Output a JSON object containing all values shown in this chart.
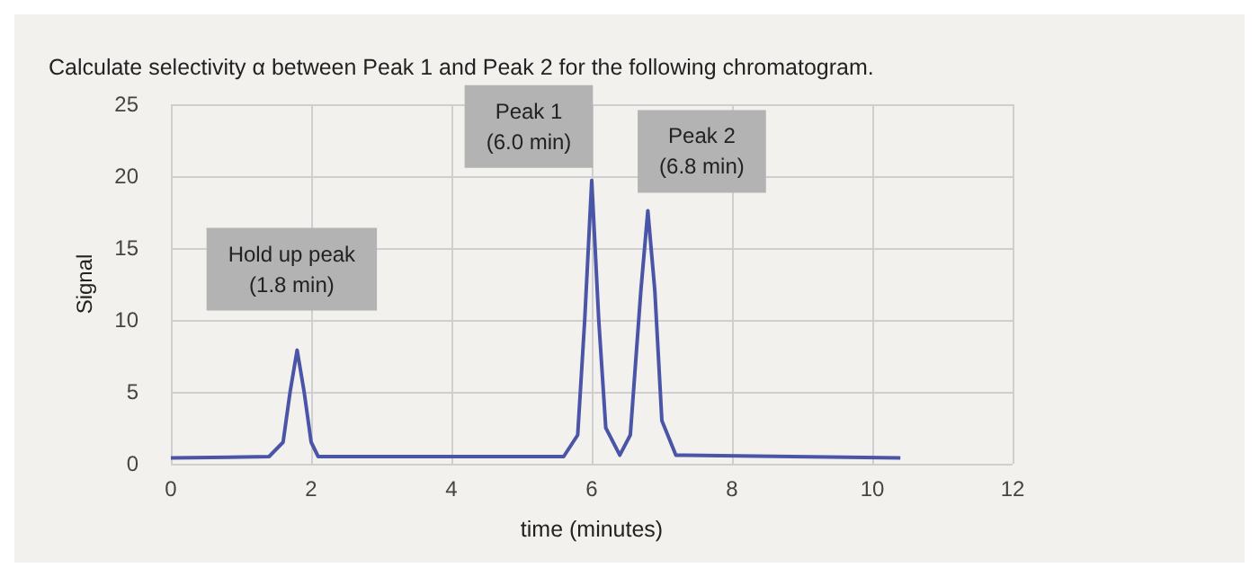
{
  "chart_data": {
    "type": "line",
    "title": "Calculate selectivity α between Peak 1 and Peak 2 for the following chromatogram.",
    "xlabel": "time (minutes)",
    "ylabel": "Signal",
    "x": [
      0,
      1.4,
      1.6,
      1.7,
      1.8,
      1.9,
      2.0,
      2.1,
      5.6,
      5.8,
      5.9,
      6.0,
      6.1,
      6.2,
      6.4,
      6.55,
      6.7,
      6.8,
      6.9,
      7.0,
      7.2,
      10.4
    ],
    "series": [
      {
        "color": "#4a55a8",
        "values": [
          0.4,
          0.5,
          1.5,
          5,
          7.9,
          5,
          1.5,
          0.5,
          0.5,
          2,
          10,
          19.7,
          10,
          2.5,
          0.6,
          2,
          12,
          17.6,
          12,
          3,
          0.6,
          0.4
        ]
      }
    ],
    "xlim": [
      0,
      12
    ],
    "xticks": [
      0,
      2,
      4,
      6,
      8,
      10,
      12
    ],
    "ylim": [
      0,
      25
    ],
    "yticks": [
      0,
      5,
      10,
      15,
      20,
      25
    ],
    "grid": true,
    "marker": "none",
    "line_style": "solid",
    "annotations": [
      {
        "text": "Hold up peak\n(1.8 min)",
        "x": 1.8,
        "y": 7.9
      },
      {
        "text": "Peak 1\n(6.0 min)",
        "x": 6.0,
        "y": 19.7
      },
      {
        "text": "Peak 2\n(6.8 min)",
        "x": 6.8,
        "y": 17.6
      }
    ]
  }
}
